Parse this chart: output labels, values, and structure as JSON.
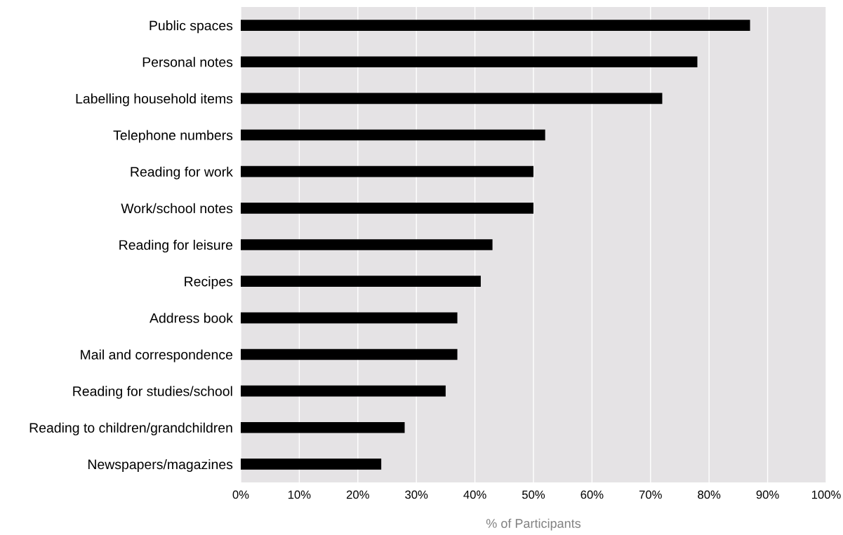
{
  "chart_data": {
    "type": "bar",
    "orientation": "horizontal",
    "xlabel": "% of Participants",
    "categories": [
      "Public spaces",
      "Personal notes",
      "Labelling household items",
      "Telephone numbers",
      "Reading for work",
      "Work/school notes",
      "Reading for leisure",
      "Recipes",
      "Address book",
      "Mail and correspondence",
      "Reading for studies/school",
      "Reading to children/grandchildren",
      "Newspapers/magazines"
    ],
    "values": [
      87,
      78,
      72,
      52,
      50,
      50,
      43,
      41,
      37,
      37,
      35,
      28,
      24
    ],
    "color": "#000000",
    "xlim": [
      0,
      100
    ],
    "xticks": [
      {
        "value": 0,
        "label": "0%"
      },
      {
        "value": 10,
        "label": "10%"
      },
      {
        "value": 20,
        "label": "20%"
      },
      {
        "value": 30,
        "label": "30%"
      },
      {
        "value": 40,
        "label": "40%"
      },
      {
        "value": 50,
        "label": "50%"
      },
      {
        "value": 60,
        "label": "60%"
      },
      {
        "value": 70,
        "label": "70%"
      },
      {
        "value": 80,
        "label": "80%"
      },
      {
        "value": 90,
        "label": "90%"
      },
      {
        "value": 100,
        "label": "100%"
      }
    ],
    "grid": "x"
  }
}
